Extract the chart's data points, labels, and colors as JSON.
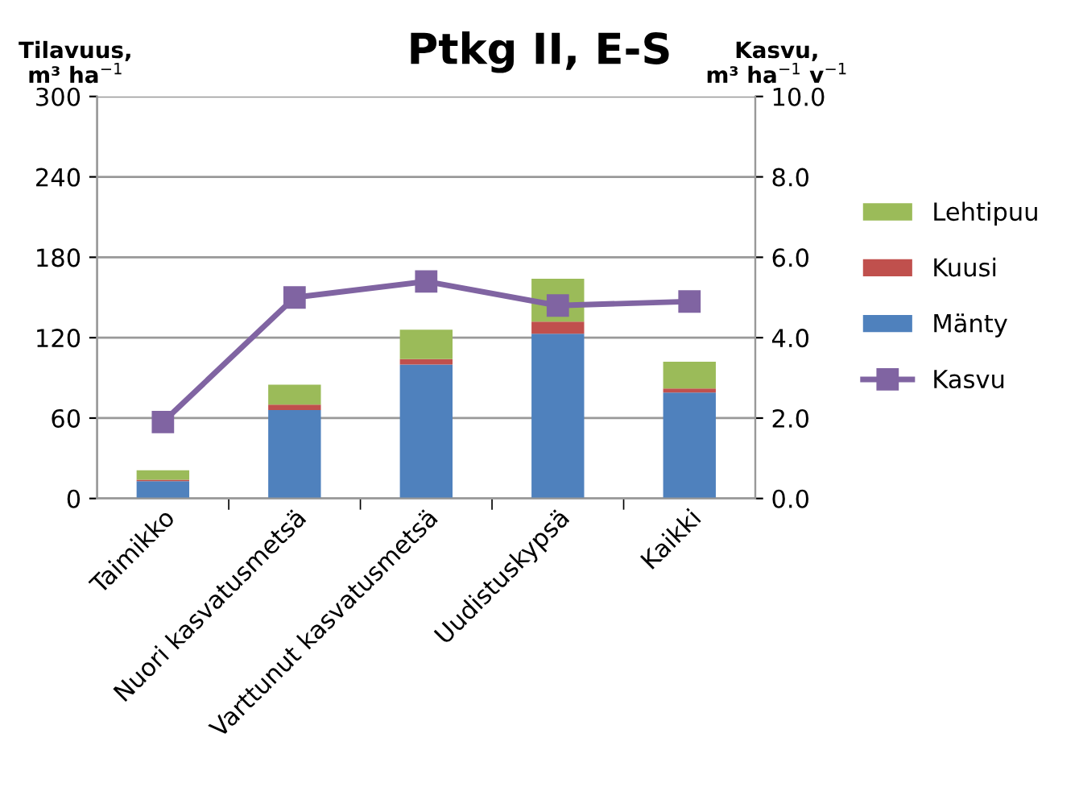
{
  "chart_data": {
    "type": "bar",
    "title": "Ptkg II, E-S",
    "ylabel": "Tilavuus,\nm³ ha$^{−1}$",
    "y2label": "Kasvu,\nm³ ha$^{−1}$ v$^{−1}$",
    "categories": [
      "Taimikko",
      "Nuori kasvatusmetsä",
      "Varttunut kasvatusmetsä",
      "Uudistuskypsä",
      "Kaikki"
    ],
    "stacked": true,
    "series": [
      {
        "name": "Mänty",
        "color": "#4f81bd",
        "values": [
          13,
          66,
          100,
          123,
          79
        ]
      },
      {
        "name": "Kuusi",
        "color": "#c0504d",
        "values": [
          1,
          4,
          4,
          9,
          3
        ]
      },
      {
        "name": "Lehtipuu",
        "color": "#9bbb59",
        "values": [
          7,
          15,
          22,
          32,
          20
        ]
      },
      {
        "name": "Kasvu",
        "type": "line",
        "axis": "y2",
        "color": "#8064a2",
        "marker": "square",
        "values": [
          1.9,
          5.0,
          5.4,
          4.8,
          4.9
        ]
      }
    ],
    "ylim": [
      0,
      300
    ],
    "yticks": [
      0,
      60,
      120,
      180,
      240,
      300
    ],
    "y2lim": [
      0,
      10
    ],
    "y2ticks": [
      {
        "value": 0,
        "label": "0.0"
      },
      {
        "value": 2,
        "label": "2.0"
      },
      {
        "value": 4,
        "label": "4.0"
      },
      {
        "value": 6,
        "label": "6.0"
      },
      {
        "value": 8,
        "label": "8.0"
      },
      {
        "value": 10,
        "label": "10.0"
      }
    ],
    "grid": "y",
    "legend": "right"
  }
}
